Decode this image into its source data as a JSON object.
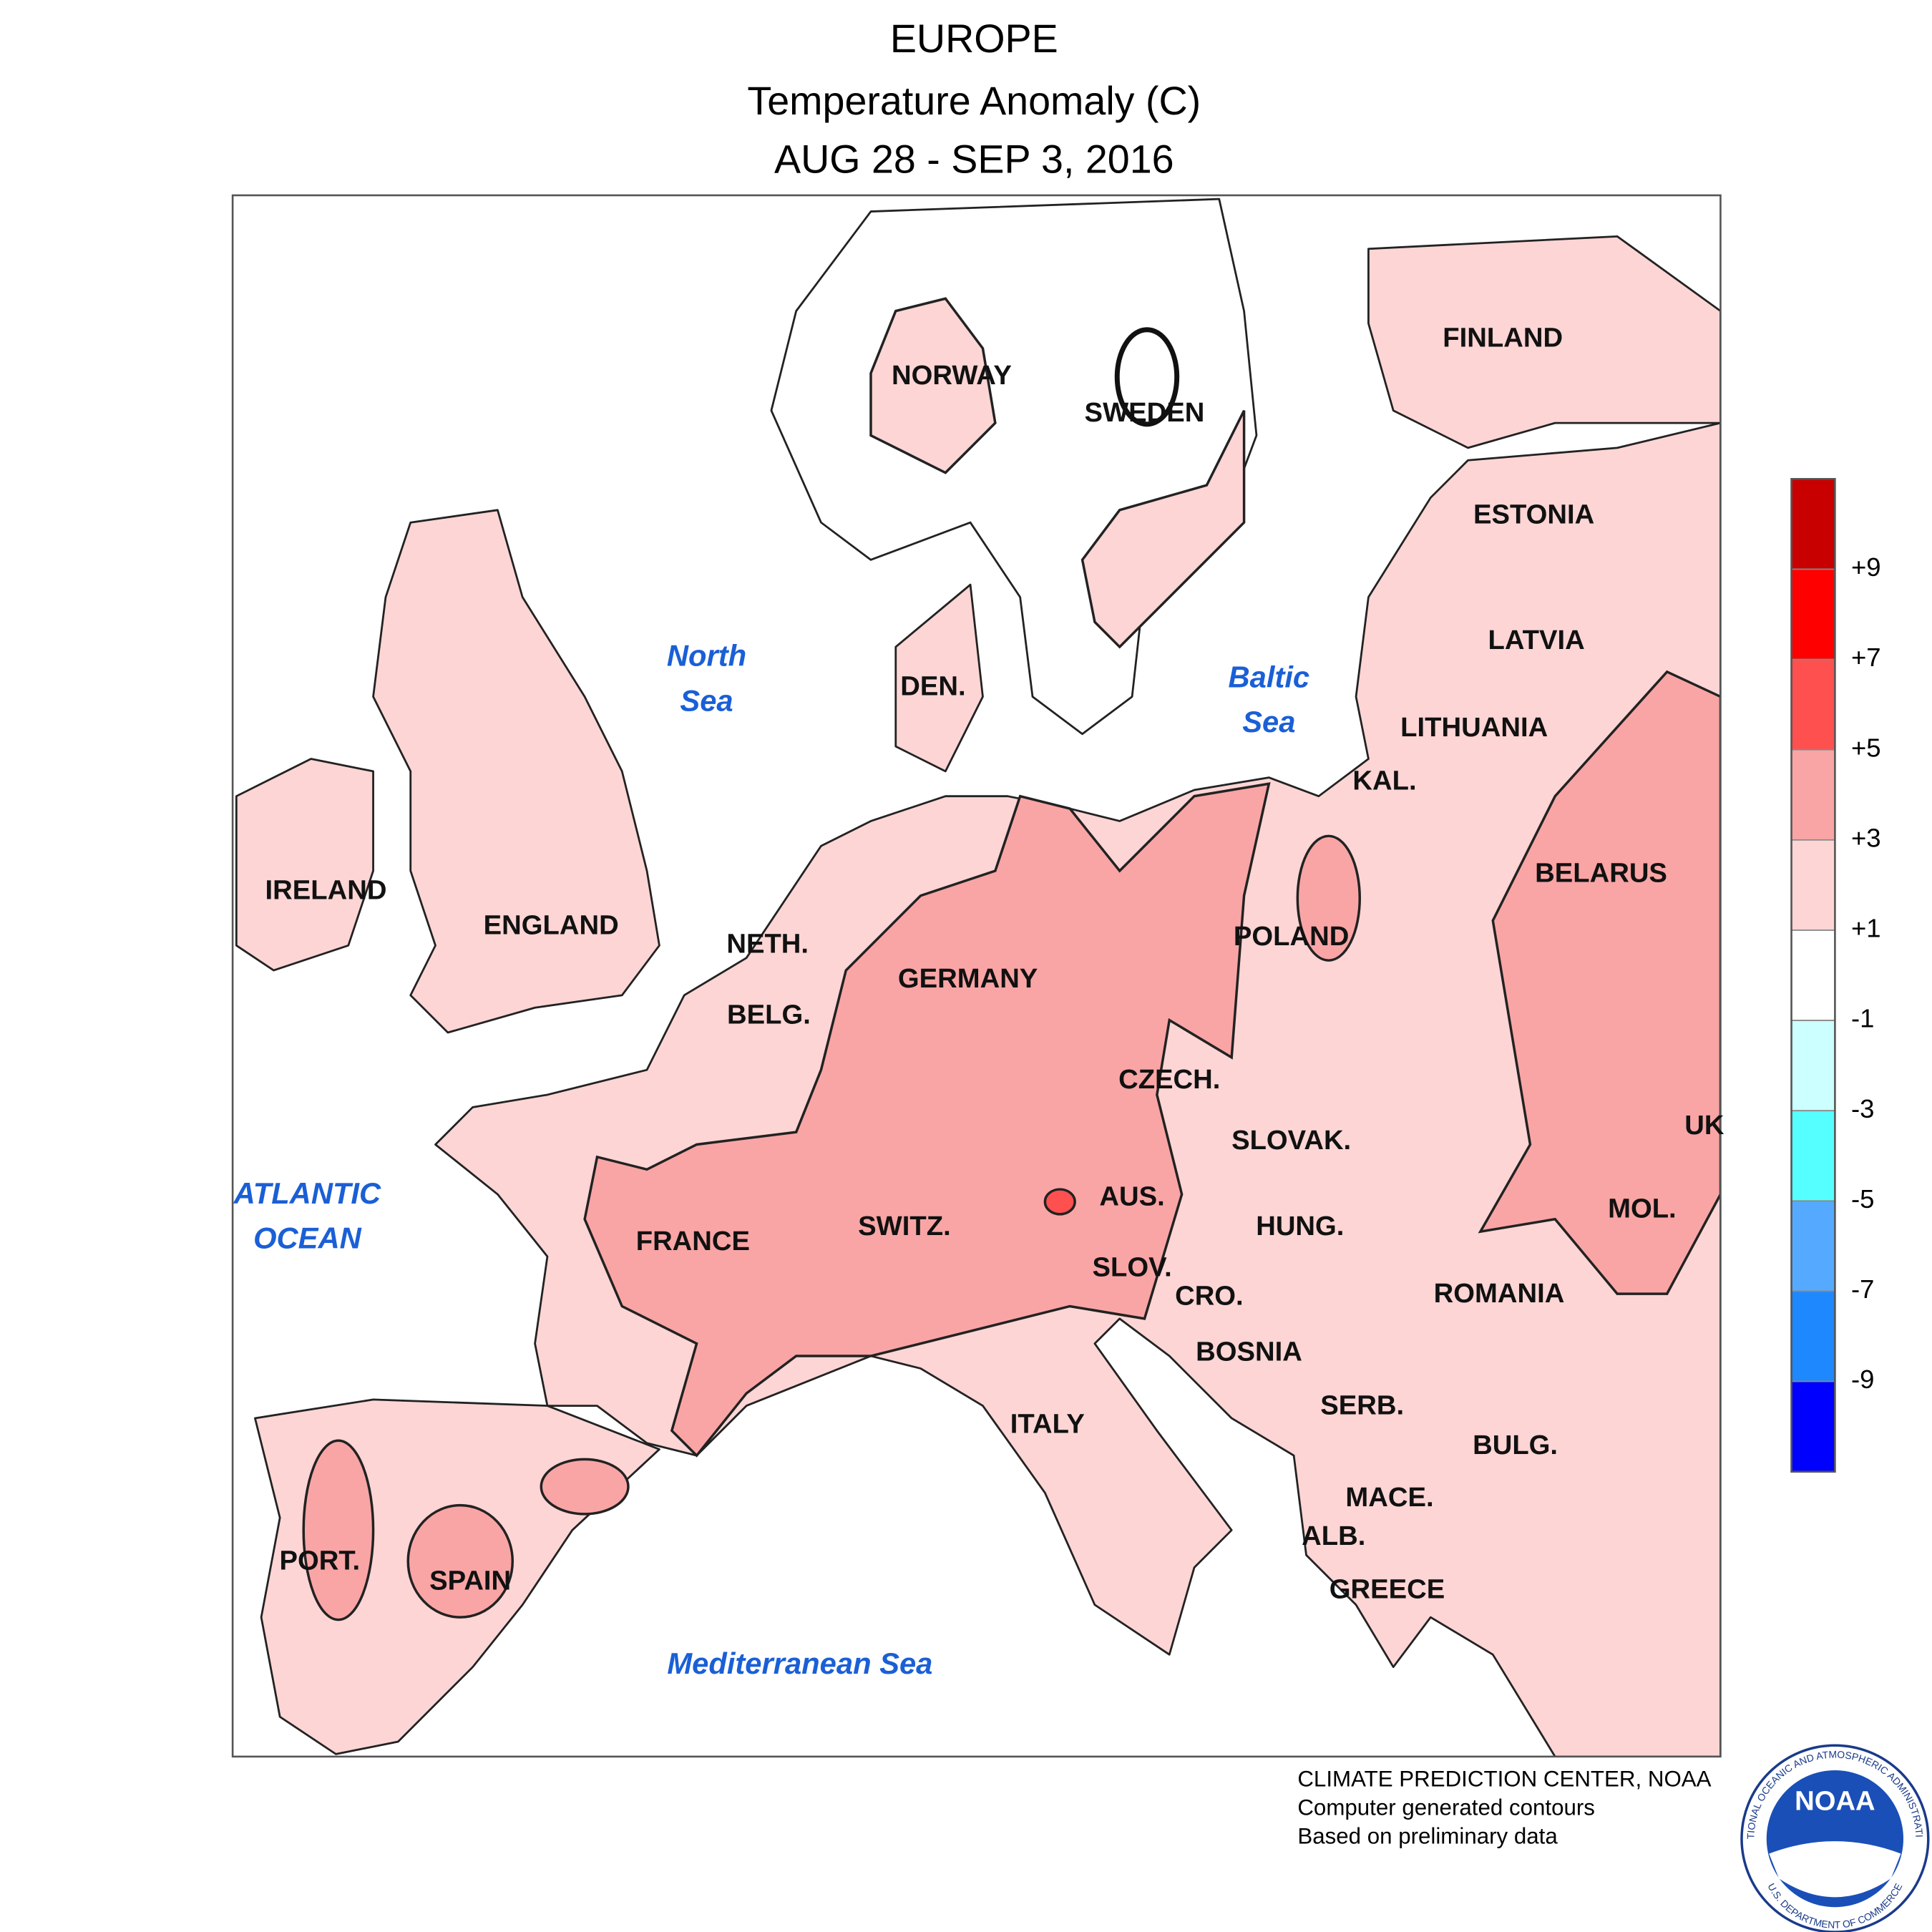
{
  "header": {
    "title": "EUROPE",
    "subtitle": "Temperature Anomaly (C)",
    "date": "AUG 28 - SEP 3, 2016"
  },
  "countries": [
    "NORWAY",
    "SWEDEN",
    "FINLAND",
    "ESTONIA",
    "LATVIA",
    "LITHUANIA",
    "KAL.",
    "BELARUS",
    "IRELAND",
    "ENGLAND",
    "NETH.",
    "BELG.",
    "GERMANY",
    "DEN.",
    "POLAND",
    "CZECH.",
    "SLOVAK.",
    "UK",
    "AUS.",
    "HUNG.",
    "MOL.",
    "SWITZ.",
    "FRANCE",
    "SLOV.",
    "CRO.",
    "ROMANIA",
    "BOSNIA",
    "SERB.",
    "ITALY",
    "BULG.",
    "MACE.",
    "ALB.",
    "GREECE",
    "PORT.",
    "SPAIN"
  ],
  "seas": [
    [
      "North",
      "Sea"
    ],
    [
      "Baltic",
      "Sea"
    ],
    [
      "ATLANTIC",
      "OCEAN"
    ],
    [
      "Mediterranean Sea"
    ]
  ],
  "legend": {
    "colors": [
      "#c80000",
      "#ff0000",
      "#ff5050",
      "#f9a5a5",
      "#fdd5d5",
      "#ffffff",
      "#ccffff",
      "#55ffff",
      "#55aaff",
      "#1e88ff",
      "#0000ff"
    ],
    "ticks": [
      "+9",
      "+7",
      "+5",
      "+3",
      "+1",
      "-1",
      "-3",
      "-5",
      "-7",
      "-9"
    ]
  },
  "credits": [
    "CLIMATE PREDICTION CENTER, NOAA",
    "Computer generated contours",
    "Based on preliminary data"
  ],
  "logo": {
    "name": "NOAA",
    "top_arc": "NATIONAL OCEANIC AND ATMOSPHERIC ADMINISTRATION",
    "bottom_arc": "U.S. DEPARTMENT OF COMMERCE"
  }
}
